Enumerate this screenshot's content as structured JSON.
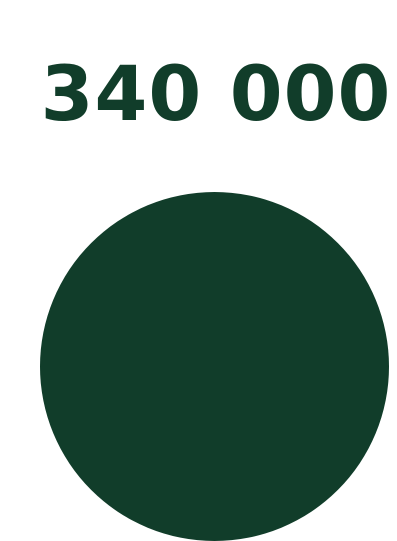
{
  "headline": {
    "value": "340 000"
  },
  "colors": {
    "brand_green": "#113d2a",
    "background": "#ffffff"
  }
}
